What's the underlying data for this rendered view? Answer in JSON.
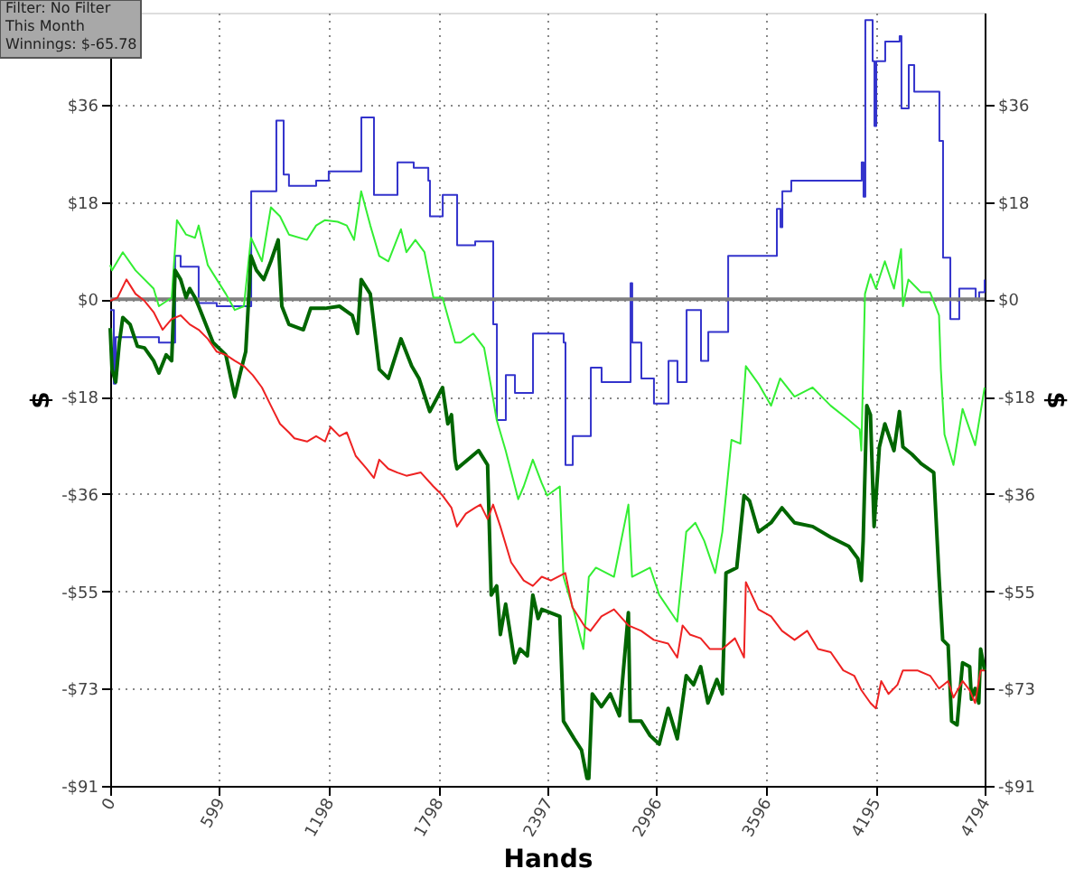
{
  "chart_data": {
    "type": "line",
    "xlabel": "Hands",
    "ylabel": "$",
    "y2label": "$",
    "xlim": [
      0,
      4794
    ],
    "xticks": [
      0,
      599,
      1198,
      1798,
      2397,
      2996,
      3596,
      4195,
      4794
    ],
    "ylim": [
      -91,
      53.6
    ],
    "yticks": [
      {
        "value": -91,
        "label": "-$91"
      },
      {
        "value": -72.8,
        "label": "-$73"
      },
      {
        "value": -54.6,
        "label": "-$55"
      },
      {
        "value": -36.4,
        "label": "-$36"
      },
      {
        "value": -18.2,
        "label": "-$18"
      },
      {
        "value": 0,
        "label": "$0"
      },
      {
        "value": 18.2,
        "label": "$18"
      },
      {
        "value": 36.4,
        "label": "$36"
      }
    ],
    "y2lim": [
      -91,
      53.6
    ],
    "y2ticks": [
      {
        "value": -91,
        "label": "-$91"
      },
      {
        "value": -72.8,
        "label": "-$73"
      },
      {
        "value": -54.6,
        "label": "-$55"
      },
      {
        "value": -36.4,
        "label": "-$36"
      },
      {
        "value": -18.2,
        "label": "-$18"
      },
      {
        "value": 0,
        "label": "$0"
      },
      {
        "value": 18.2,
        "label": "$18"
      },
      {
        "value": 36.4,
        "label": "$36"
      }
    ],
    "grid": true,
    "annotations": [
      "Filter: No Filter",
      "This Month",
      "Winnings: $-65.78"
    ],
    "ref_lines": [
      {
        "axis": "y",
        "value": 0,
        "color": "#808080"
      }
    ],
    "series": [
      {
        "type": "step",
        "color": "#3333cc",
        "x": [
          0,
          20,
          30,
          267,
          356,
          386,
          485,
          584,
          773,
          911,
          951,
          980,
          1129,
          1198,
          1377,
          1446,
          1575,
          1664,
          1744,
          1753,
          1823,
          1902,
          2001,
          2100,
          2120,
          2169,
          2219,
          2318,
          2486,
          2496,
          2536,
          2635,
          2694,
          2853,
          2862,
          2912,
          2981,
          3061,
          3110,
          3160,
          3239,
          3279,
          3388,
          3655,
          3675,
          3685,
          3734,
          4120,
          4130,
          4140,
          4180,
          4190,
          4200,
          4249,
          4328,
          4338,
          4378,
          4408,
          4546,
          4566,
          4606,
          4655,
          4745,
          4764,
          4794
        ],
        "values": [
          -2,
          -15.8,
          -7.1,
          -8.1,
          8.1,
          6.1,
          -0.7,
          -1.3,
          20.2,
          33.4,
          23.3,
          21.2,
          22.2,
          23.9,
          34.0,
          19.5,
          25.6,
          24.6,
          22.2,
          15.5,
          19.5,
          10.1,
          10.8,
          -4.7,
          -22.6,
          -14.2,
          -17.5,
          -6.4,
          -8.1,
          -31.0,
          -25.6,
          -12.8,
          -15.5,
          3.0,
          -8.1,
          -14.8,
          -19.5,
          -11.5,
          -15.5,
          -2.0,
          -11.5,
          -6.1,
          8.1,
          16.9,
          13.5,
          20.2,
          22.2,
          25.6,
          19.2,
          52.2,
          44.5,
          32.4,
          44.5,
          48.2,
          49.2,
          35.7,
          43.8,
          38.8,
          29.6,
          7.8,
          -3.7,
          2.0,
          0,
          1.3,
          3.7
        ]
      },
      {
        "color": "#33ee33",
        "x": [
          0,
          10,
          69,
          139,
          238,
          267,
          337,
          366,
          416,
          465,
          485,
          535,
          584,
          634,
          683,
          733,
          772,
          832,
          881,
          931,
          980,
          1079,
          1129,
          1178,
          1247,
          1297,
          1337,
          1376,
          1426,
          1475,
          1525,
          1594,
          1624,
          1673,
          1723,
          1752,
          1772,
          1822,
          1891,
          1921,
          1990,
          2050,
          2089,
          2119,
          2168,
          2237,
          2267,
          2317,
          2366,
          2396,
          2465,
          2485,
          2544,
          2594,
          2624,
          2663,
          2762,
          2841,
          2861,
          2960,
          3010,
          3109,
          3158,
          3208,
          3257,
          3317,
          3356,
          3406,
          3455,
          3485,
          3554,
          3623,
          3673,
          3752,
          3851,
          3950,
          4049,
          4109,
          4118,
          4138,
          4168,
          4198,
          4247,
          4297,
          4336,
          4346,
          4376,
          4445,
          4495,
          4544,
          4554,
          4574,
          4623,
          4673,
          4742,
          4794
        ],
        "values": [
          6.4,
          5.4,
          8.8,
          5.4,
          2.0,
          -1.3,
          0.3,
          14.8,
          12.1,
          11.5,
          13.8,
          6.4,
          3.7,
          1.0,
          -2.0,
          -1.3,
          11.5,
          7.1,
          17.2,
          15.5,
          12.1,
          11.1,
          13.8,
          14.8,
          14.5,
          13.8,
          11.1,
          20.2,
          13.8,
          8.1,
          7.1,
          13.1,
          8.8,
          11.1,
          8.8,
          3.7,
          0.3,
          0.3,
          -8.1,
          -8.1,
          -6.4,
          -9.1,
          -16.5,
          -22.6,
          -28.3,
          -37.4,
          -35.0,
          -30.0,
          -34.4,
          -36.7,
          -35.0,
          -51.9,
          -58.6,
          -65.4,
          -51.9,
          -50.2,
          -51.9,
          -38.4,
          -51.9,
          -50.2,
          -55.3,
          -60.3,
          -43.5,
          -41.8,
          -45.2,
          -51.2,
          -43.5,
          -26.3,
          -27.0,
          -12.5,
          -15.8,
          -19.9,
          -14.8,
          -18.2,
          -16.5,
          -19.9,
          -22.6,
          -24.3,
          -28.3,
          1.0,
          4.7,
          2.0,
          7.1,
          2.0,
          9.4,
          -1.3,
          3.7,
          1.3,
          1.3,
          -3.0,
          -13.1,
          -25.3,
          -31.0,
          -20.5,
          -27.3,
          -16.5
        ]
      },
      {
        "color": "#006600",
        "x": [
          0,
          10,
          30,
          50,
          69,
          109,
          149,
          188,
          238,
          267,
          307,
          337,
          356,
          386,
          416,
          436,
          465,
          485,
          564,
          634,
          683,
          713,
          743,
          772,
          802,
          842,
          881,
          921,
          941,
          980,
          1059,
          1099,
          1178,
          1257,
          1327,
          1356,
          1376,
          1426,
          1475,
          1525,
          1594,
          1653,
          1693,
          1752,
          1822,
          1851,
          1871,
          1891,
          1901,
          2020,
          2069,
          2089,
          2119,
          2139,
          2168,
          2218,
          2247,
          2287,
          2317,
          2346,
          2366,
          2465,
          2485,
          2544,
          2584,
          2614,
          2624,
          2643,
          2693,
          2742,
          2792,
          2841,
          2851,
          2911,
          2960,
          3010,
          3059,
          3109,
          3158,
          3198,
          3237,
          3277,
          3326,
          3356,
          3376,
          3435,
          3475,
          3505,
          3554,
          3623,
          3683,
          3752,
          3851,
          3950,
          4049,
          4099,
          4118,
          4128,
          4148,
          4168,
          4188,
          4217,
          4247,
          4297,
          4327,
          4346,
          4396,
          4445,
          4515,
          4544,
          4564,
          4594,
          4613,
          4643,
          4673,
          4712,
          4722,
          4742,
          4762,
          4772,
          4794
        ],
        "values": [
          -5.4,
          -13.1,
          -15.5,
          -8.1,
          -3.4,
          -4.7,
          -8.8,
          -9.1,
          -11.5,
          -13.8,
          -10.4,
          -11.5,
          5.4,
          3.7,
          0.3,
          2.0,
          0.3,
          -1.3,
          -8.1,
          -10.4,
          -18.2,
          -13.8,
          -9.8,
          8.1,
          5.4,
          3.7,
          7.1,
          11.1,
          -1.3,
          -4.7,
          -5.7,
          -1.7,
          -1.7,
          -1.3,
          -3.0,
          -6.4,
          3.7,
          1.0,
          -13.1,
          -14.8,
          -7.4,
          -12.5,
          -14.8,
          -21.0,
          -16.5,
          -23.3,
          -21.6,
          -30.0,
          -31.7,
          -28.3,
          -31.0,
          -55.3,
          -53.6,
          -62.7,
          -57.0,
          -68.0,
          -65.4,
          -66.7,
          -55.3,
          -59.7,
          -58.0,
          -59.3,
          -78.9,
          -82.2,
          -84.3,
          -89.6,
          -89.6,
          -73.8,
          -76.2,
          -73.8,
          -77.9,
          -58.6,
          -78.9,
          -78.9,
          -81.6,
          -83.2,
          -76.5,
          -82.2,
          -70.4,
          -72.1,
          -68.7,
          -75.5,
          -71.1,
          -73.8,
          -51.2,
          -50.2,
          -36.7,
          -37.7,
          -43.5,
          -41.8,
          -39.0,
          -41.8,
          -42.5,
          -44.5,
          -46.2,
          -48.5,
          -52.6,
          -45.2,
          -19.9,
          -21.6,
          -42.5,
          -27.6,
          -23.3,
          -28.3,
          -21.0,
          -27.6,
          -29.0,
          -30.7,
          -32.4,
          -51.9,
          -63.7,
          -64.7,
          -78.9,
          -79.6,
          -68.0,
          -68.7,
          -74.8,
          -72.8,
          -75.5,
          -65.4,
          -69.4
        ]
      },
      {
        "color": "#ee2222",
        "x": [
          0,
          40,
          89,
          139,
          188,
          238,
          287,
          337,
          386,
          436,
          485,
          535,
          584,
          634,
          683,
          733,
          782,
          832,
          881,
          931,
          980,
          1010,
          1079,
          1129,
          1178,
          1208,
          1257,
          1297,
          1346,
          1406,
          1446,
          1475,
          1525,
          1574,
          1624,
          1703,
          1772,
          1822,
          1871,
          1901,
          1950,
          2000,
          2030,
          2069,
          2099,
          2139,
          2198,
          2267,
          2317,
          2366,
          2416,
          2495,
          2534,
          2604,
          2633,
          2693,
          2762,
          2841,
          2911,
          2980,
          3059,
          3109,
          3138,
          3178,
          3237,
          3287,
          3356,
          3425,
          3475,
          3485,
          3554,
          3623,
          3683,
          3752,
          3821,
          3881,
          3950,
          4019,
          4079,
          4118,
          4168,
          4198,
          4227,
          4267,
          4316,
          4346,
          4425,
          4495,
          4544,
          4594,
          4623,
          4673,
          4712,
          4742,
          4772,
          4794
        ],
        "values": [
          -0.3,
          0.3,
          3.7,
          1.0,
          -0.3,
          -2.4,
          -5.7,
          -3.7,
          -3.0,
          -4.7,
          -5.7,
          -7.4,
          -9.8,
          -10.4,
          -11.5,
          -12.5,
          -14.2,
          -16.5,
          -19.9,
          -23.3,
          -24.9,
          -26.0,
          -26.6,
          -25.6,
          -26.6,
          -23.9,
          -25.6,
          -24.9,
          -29.3,
          -31.7,
          -33.4,
          -30.0,
          -31.7,
          -32.4,
          -33.0,
          -32.4,
          -35.0,
          -36.7,
          -39.0,
          -42.5,
          -40.1,
          -39.0,
          -38.4,
          -41.1,
          -38.4,
          -42.5,
          -49.2,
          -52.6,
          -53.6,
          -51.9,
          -52.6,
          -51.2,
          -57.6,
          -61.3,
          -62.0,
          -59.3,
          -58.0,
          -61.0,
          -62.0,
          -63.7,
          -64.4,
          -67.0,
          -61.0,
          -62.7,
          -63.4,
          -65.4,
          -65.4,
          -63.4,
          -67.0,
          -52.9,
          -58.0,
          -59.3,
          -62.0,
          -63.7,
          -62.0,
          -65.4,
          -66.0,
          -69.4,
          -70.4,
          -73.1,
          -75.5,
          -76.5,
          -71.4,
          -73.8,
          -72.1,
          -69.4,
          -69.4,
          -70.4,
          -72.8,
          -71.4,
          -74.5,
          -71.4,
          -73.1,
          -75.5,
          -69.4,
          -69.4
        ]
      }
    ]
  }
}
